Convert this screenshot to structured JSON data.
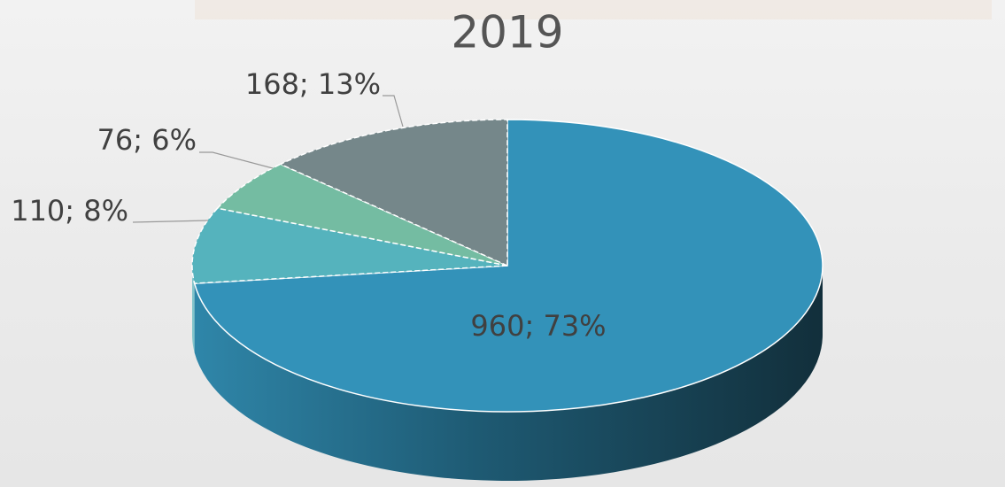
{
  "chart_data": {
    "type": "pie",
    "title": "2019",
    "values": [
      960,
      110,
      76,
      168
    ],
    "value_labels": [
      "960; 73%",
      "110; 8%",
      "76; 6%",
      "168; 13%"
    ],
    "colors": [
      "#3392b9",
      "#55b3bd",
      "#74bca2",
      "#75878a"
    ]
  }
}
